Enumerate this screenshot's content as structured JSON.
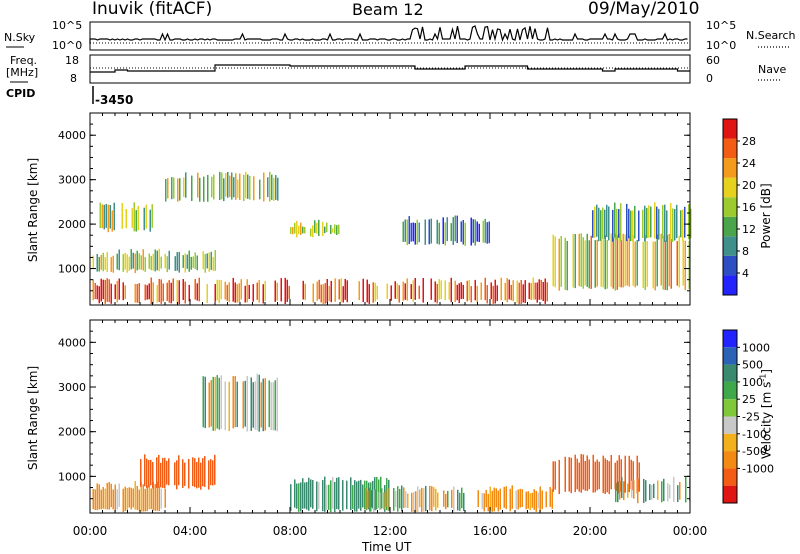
{
  "header": {
    "station": "Inuvik (fitACF)",
    "beam": "Beam 12",
    "date": "09/May/2010"
  },
  "top_panels": {
    "nsky_label": "N.Sky",
    "nsky_ticks": [
      "10^5",
      "10^0"
    ],
    "nsearch_label": "N.Search",
    "nsearch_ticks": [
      "10^5",
      "10^0"
    ],
    "freq_label": "Freq.",
    "freq_unit": "[MHz]",
    "freq_ticks": [
      "18",
      "8"
    ],
    "nave_label": "Nave",
    "nave_ticks": [
      "60",
      "0"
    ],
    "cpid_label": "CPID",
    "cpid_value": "-3450"
  },
  "colors": {
    "power": [
      "#2323ff",
      "#2e4ec4",
      "#3f8f8a",
      "#4aa54a",
      "#9bcb2e",
      "#e6d21e",
      "#f49a1c",
      "#f25c14",
      "#e11414"
    ],
    "velocity": [
      "#2323ff",
      "#2a63b5",
      "#3a8a70",
      "#3fa84a",
      "#7fc83a",
      "#c8c8c8",
      "#f2b11c",
      "#f28a14",
      "#f25c14",
      "#e11414"
    ]
  },
  "chart_data": [
    {
      "type": "heatmap",
      "panel": "power",
      "xlabel": "",
      "ylabel": "Slant Range [km]",
      "x_range": [
        "00:00",
        "00:00"
      ],
      "ylim": [
        180,
        4500
      ],
      "y_ticks": [
        "1000",
        "2000",
        "3000",
        "4000"
      ],
      "colorbar": {
        "label": "Power [dB]",
        "ticks": [
          "4",
          "8",
          "12",
          "16",
          "20",
          "24",
          "28"
        ],
        "range": [
          0,
          32
        ]
      },
      "regions": [
        {
          "t0": 0.1,
          "t1": 8.0,
          "r0": 200,
          "r1": 800,
          "level": 7
        },
        {
          "t0": 0.1,
          "t1": 5.0,
          "r0": 900,
          "r1": 1450,
          "level": 4
        },
        {
          "t0": 0.3,
          "t1": 2.5,
          "r0": 1800,
          "r1": 2500,
          "level": 4
        },
        {
          "t0": 3.0,
          "t1": 7.5,
          "r0": 2500,
          "r1": 3200,
          "level": 4
        },
        {
          "t0": 8.0,
          "t1": 10.0,
          "r0": 1700,
          "r1": 2100,
          "level": 4
        },
        {
          "t0": 8.5,
          "t1": 18.5,
          "r0": 200,
          "r1": 800,
          "level": 7
        },
        {
          "t0": 12.5,
          "t1": 16.0,
          "r0": 1500,
          "r1": 2200,
          "level": 2
        },
        {
          "t0": 18.5,
          "t1": 24.0,
          "r0": 500,
          "r1": 1800,
          "level": 5
        },
        {
          "t0": 20.0,
          "t1": 24.0,
          "r0": 1600,
          "r1": 2500,
          "level": 3
        }
      ]
    },
    {
      "type": "heatmap",
      "panel": "velocity",
      "xlabel": "Time UT",
      "ylabel": "Slant Range [km]",
      "x_ticks": [
        "00:00",
        "04:00",
        "08:00",
        "12:00",
        "16:00",
        "20:00",
        "00:00"
      ],
      "ylim": [
        180,
        4500
      ],
      "y_ticks": [
        "1000",
        "2000",
        "3000",
        "4000"
      ],
      "colorbar": {
        "label": "Velocity [m s^-1]",
        "ticks": [
          "1000",
          "500",
          "100",
          "25",
          "-25",
          "-100",
          "-500",
          "-1000"
        ]
      },
      "regions": [
        {
          "t0": 0.1,
          "t1": 3.0,
          "r0": 200,
          "r1": 900,
          "value": -100
        },
        {
          "t0": 2.0,
          "t1": 5.0,
          "r0": 700,
          "r1": 1500,
          "value": -500
        },
        {
          "t0": 4.5,
          "t1": 7.5,
          "r0": 2000,
          "r1": 3300,
          "value": 0
        },
        {
          "t0": 8.0,
          "t1": 12.0,
          "r0": 200,
          "r1": 1000,
          "value": 100
        },
        {
          "t0": 11.0,
          "t1": 15.0,
          "r0": 200,
          "r1": 800,
          "value": 0
        },
        {
          "t0": 15.5,
          "t1": 18.5,
          "r0": 200,
          "r1": 800,
          "value": -100
        },
        {
          "t0": 18.5,
          "t1": 22.0,
          "r0": 600,
          "r1": 1500,
          "value": -500
        },
        {
          "t0": 21.0,
          "t1": 24.0,
          "r0": 400,
          "r1": 1000,
          "value": 0
        }
      ]
    }
  ]
}
